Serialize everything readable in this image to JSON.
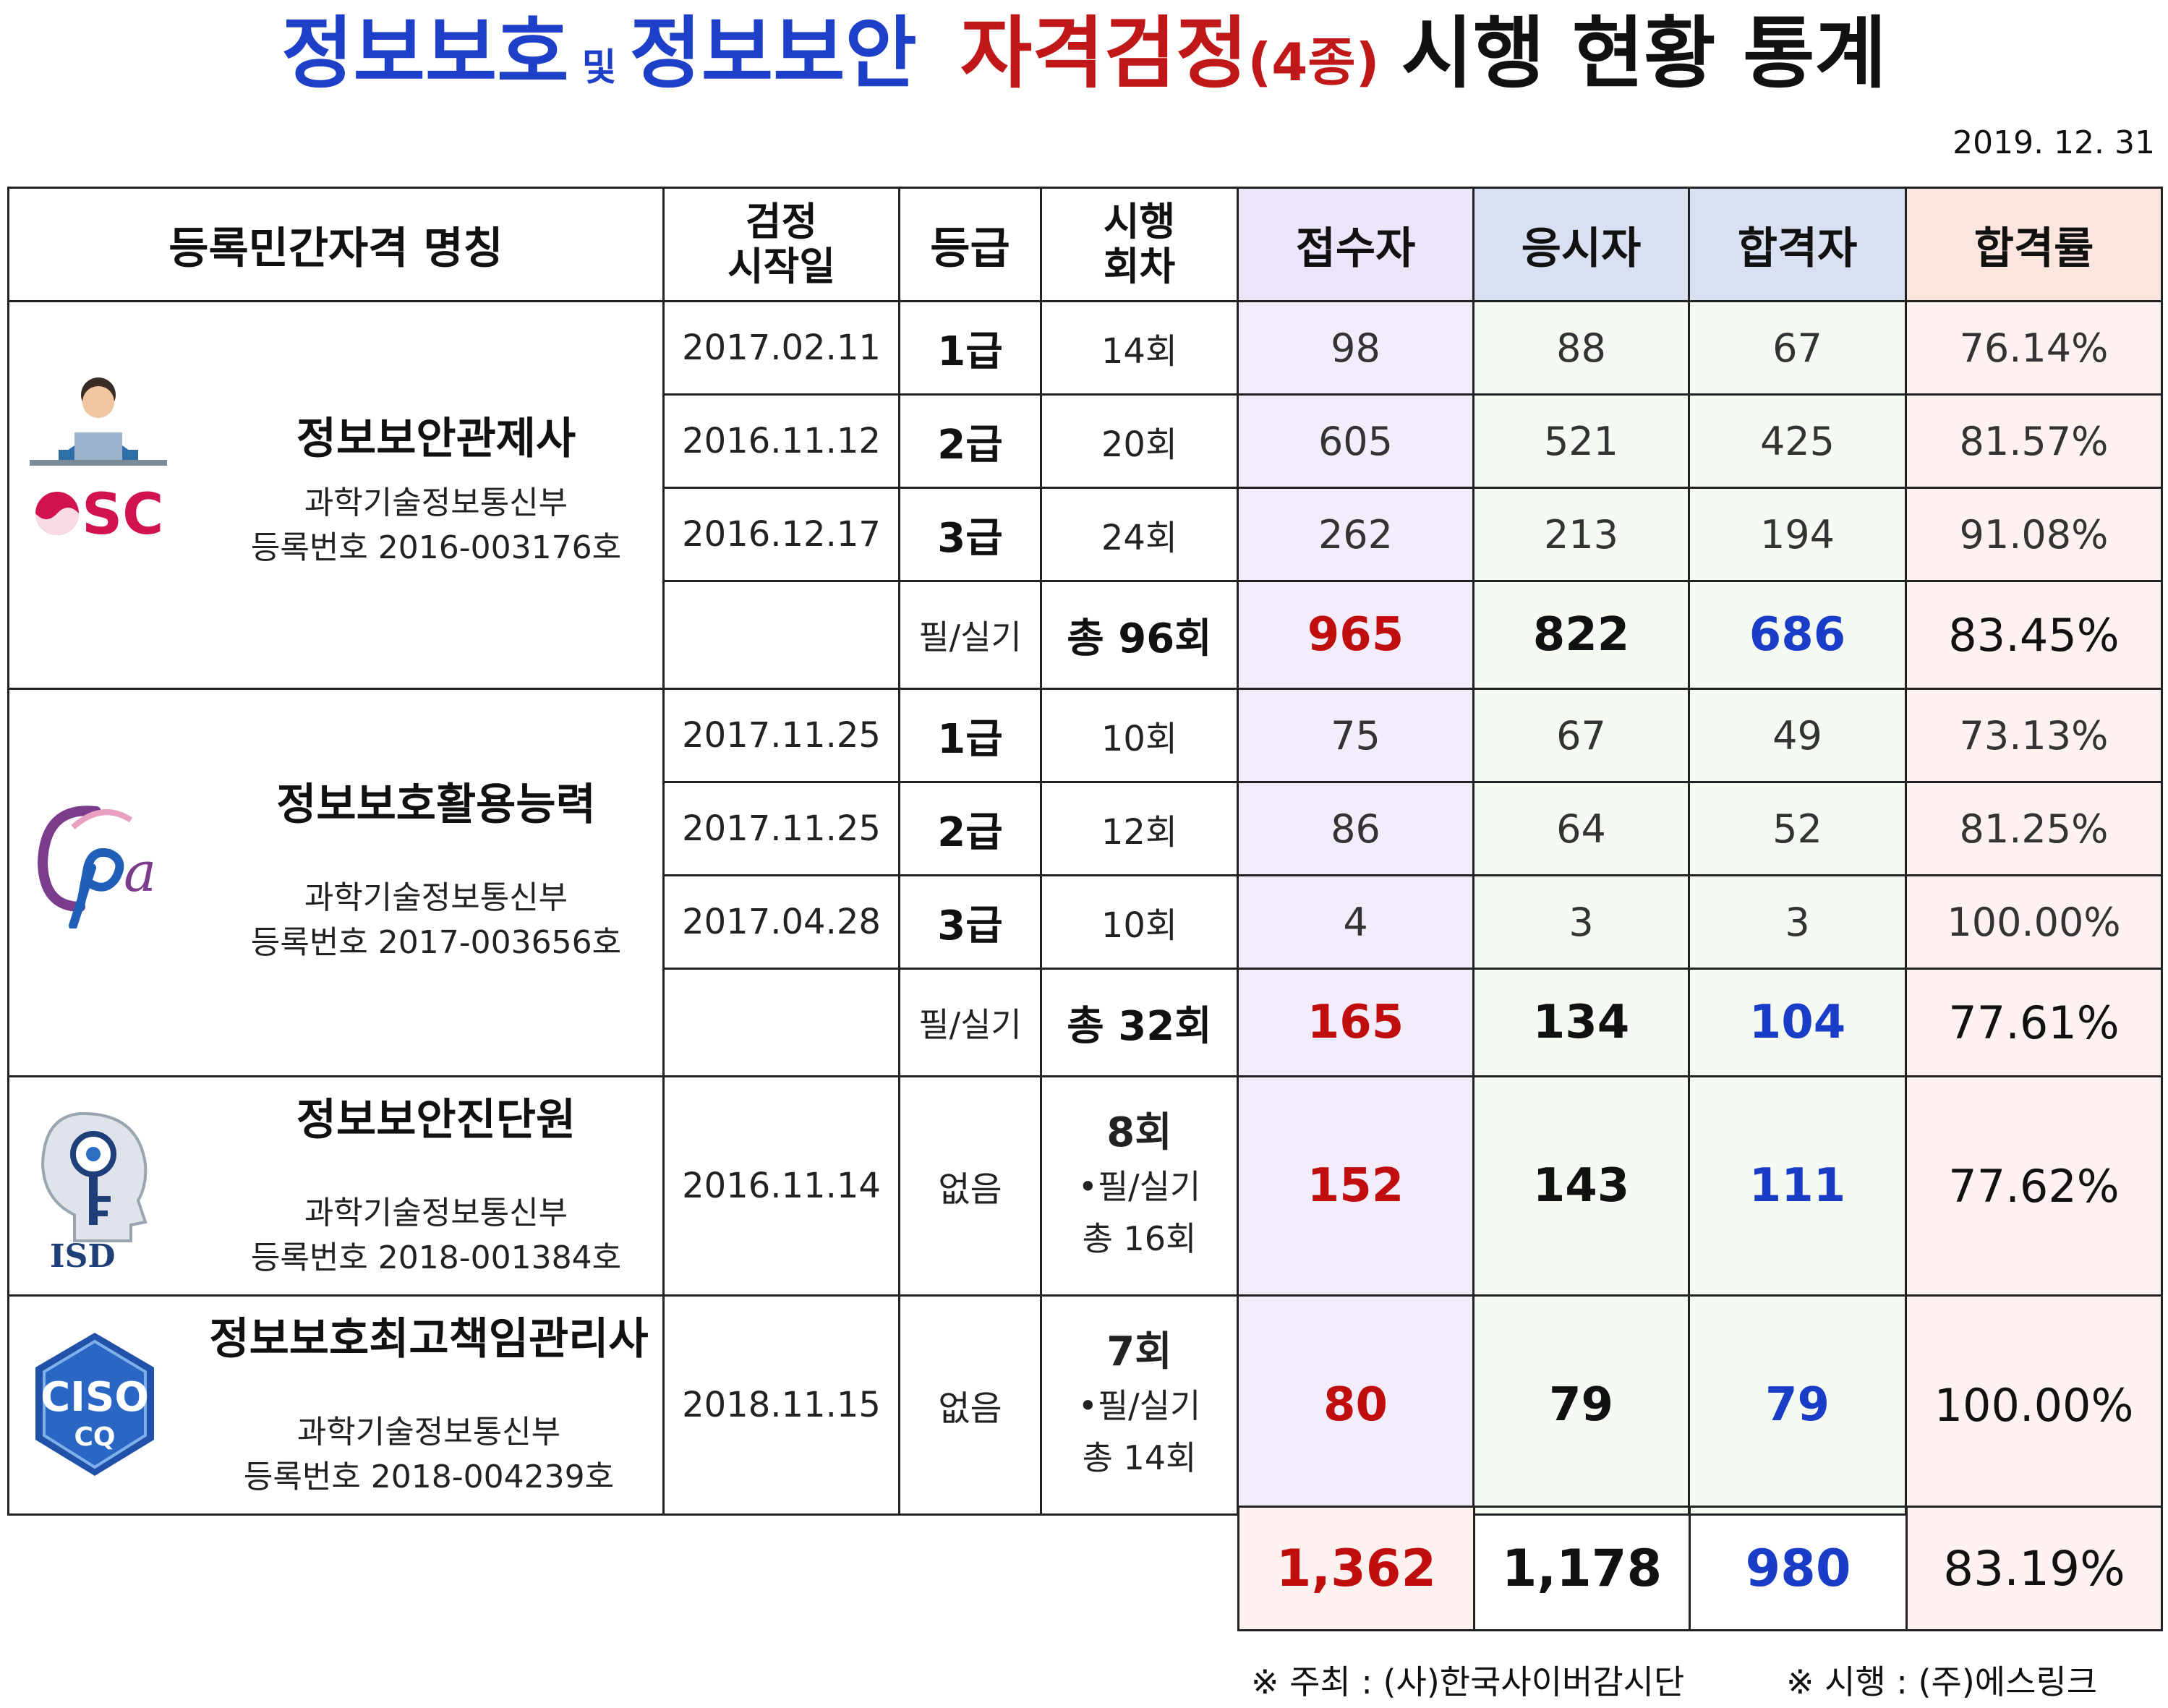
{
  "title": {
    "part1": "정보보호",
    "conj": "및",
    "part2": "정보보안",
    "part3": "자격검정",
    "part3_sub": "(4종)",
    "part4": "시행 현황 통계"
  },
  "date": "2019. 12. 31",
  "headers": {
    "name": "등록민간자격 명칭",
    "start_date": "검정\n시작일",
    "grade": "등급",
    "rounds": "시행\n회차",
    "applicants": "접수자",
    "examinees": "응시자",
    "passed": "합격자",
    "pass_rate": "합격률"
  },
  "certifications": [
    {
      "name": "정보보안관제사",
      "ministry": "과학기술정보통신부",
      "reg_no": "등록번호 2016-003176호",
      "logo": "osc-logo",
      "rows": [
        {
          "start_date": "2017.02.11",
          "grade": "1급",
          "rounds": "14회",
          "applicants": "98",
          "examinees": "88",
          "passed": "67",
          "rate": "76.14%"
        },
        {
          "start_date": "2016.11.12",
          "grade": "2급",
          "rounds": "20회",
          "applicants": "605",
          "examinees": "521",
          "passed": "425",
          "rate": "81.57%"
        },
        {
          "start_date": "2016.12.17",
          "grade": "3급",
          "rounds": "24회",
          "applicants": "262",
          "examinees": "213",
          "passed": "194",
          "rate": "91.08%"
        }
      ],
      "subtotal": {
        "exam_type": "필/실기",
        "total_rounds": "총 96회",
        "applicants": "965",
        "examinees": "822",
        "passed": "686",
        "rate": "83.45%"
      }
    },
    {
      "name": "정보보호활용능력",
      "ministry": "과학기술정보통신부",
      "reg_no": "등록번호 2017-003656호",
      "logo": "ipa-logo",
      "rows": [
        {
          "start_date": "2017.11.25",
          "grade": "1급",
          "rounds": "10회",
          "applicants": "75",
          "examinees": "67",
          "passed": "49",
          "rate": "73.13%"
        },
        {
          "start_date": "2017.11.25",
          "grade": "2급",
          "rounds": "12회",
          "applicants": "86",
          "examinees": "64",
          "passed": "52",
          "rate": "81.25%"
        },
        {
          "start_date": "2017.04.28",
          "grade": "3급",
          "rounds": "10회",
          "applicants": "4",
          "examinees": "3",
          "passed": "3",
          "rate": "100.00%"
        }
      ],
      "subtotal": {
        "exam_type": "필/실기",
        "total_rounds": "총 32회",
        "applicants": "165",
        "examinees": "134",
        "passed": "104",
        "rate": "77.61%"
      }
    },
    {
      "name": "정보보안진단원",
      "ministry": "과학기술정보통신부",
      "reg_no": "등록번호 2018-001384호",
      "logo": "isd-logo",
      "logo_text": "ISD",
      "start_date": "2016.11.14",
      "grade": "없음",
      "rounds_main": "8회",
      "rounds_type": "•필/실기",
      "rounds_total": "총 16회",
      "applicants": "152",
      "examinees": "143",
      "passed": "111",
      "rate": "77.62%"
    },
    {
      "name": "정보보호최고책임관리사",
      "ministry": "과학기술정보통신부",
      "reg_no": "등록번호 2018-004239호",
      "logo": "ciso-logo",
      "logo_text": "CISO",
      "logo_sub": "CQ",
      "start_date": "2018.11.15",
      "grade": "없음",
      "rounds_main": "7회",
      "rounds_type": "•필/실기",
      "rounds_total": "총 14회",
      "applicants": "80",
      "examinees": "79",
      "passed": "79",
      "rate": "100.00%"
    }
  ],
  "grand_total": {
    "applicants": "1,362",
    "examinees": "1,178",
    "passed": "980",
    "rate": "83.19%"
  },
  "footer": {
    "host": "※ 주최 : (사)한국사이버감시단",
    "operator": "※ 시행 : (주)에스링크"
  }
}
